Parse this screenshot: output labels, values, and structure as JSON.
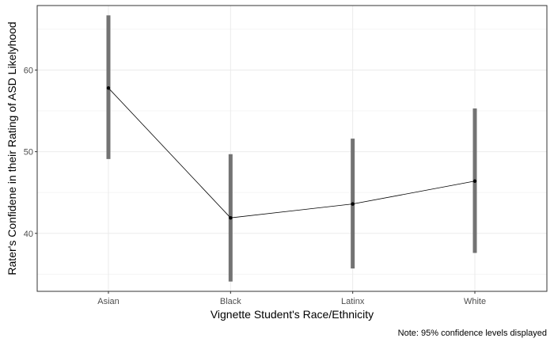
{
  "chart_data": {
    "type": "line",
    "categories": [
      "Asian",
      "Black",
      "Latinx",
      "White"
    ],
    "series": [
      {
        "values": [
          57.8,
          41.9,
          43.6,
          46.4
        ],
        "ci_lower": [
          49.1,
          34.1,
          35.7,
          37.6
        ],
        "ci_upper": [
          66.7,
          49.7,
          51.6,
          55.3
        ]
      }
    ],
    "xlabel": "Vignette Student's Race/Ethnicity",
    "ylabel": "Rater's Confidene in their Rating of ASD Likelyhood",
    "ylim": [
      32.9,
      67.9
    ],
    "yticks": [
      40,
      50,
      60
    ],
    "caption": "Note: 95% confidence levels displayed",
    "grid": true,
    "colors": {
      "errorbar": "#737373",
      "line": "#000000",
      "grid_major": "#ebebeb",
      "grid_minor": "#f5f5f5",
      "border": "#333333"
    }
  }
}
